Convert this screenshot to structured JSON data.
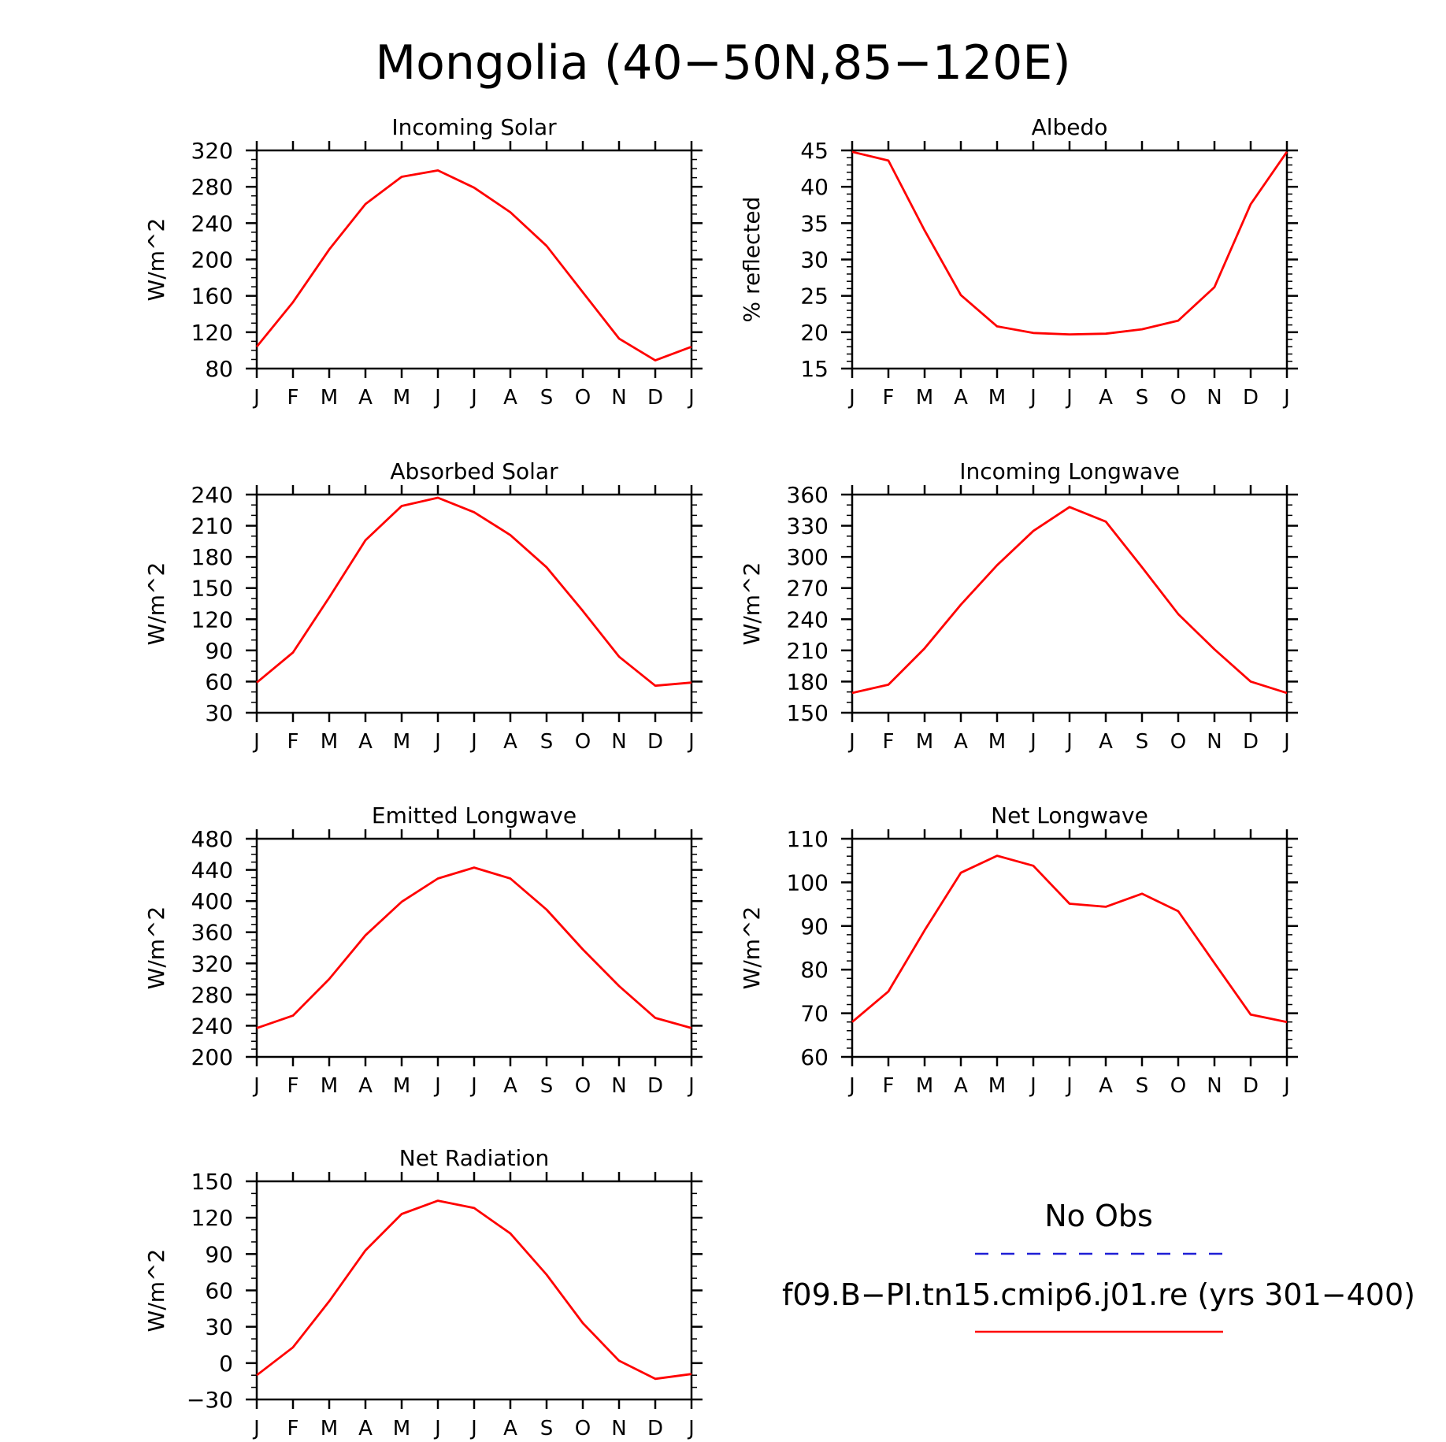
{
  "figure": {
    "title": "Mongolia (40−50N,85−120E)",
    "legend": {
      "entries": [
        {
          "label": "No Obs",
          "color": "#1f1fd6",
          "dash": true
        },
        {
          "label": "f09.B−PI.tn15.cmip6.j01.re (yrs 301−400)",
          "color": "#ff0000",
          "dash": false
        }
      ]
    }
  },
  "chart_data": [
    {
      "type": "line",
      "title": "Incoming Solar",
      "xlabel": "",
      "ylabel": "W/m^2",
      "categories": [
        "J",
        "F",
        "M",
        "A",
        "M",
        "J",
        "J",
        "A",
        "S",
        "O",
        "N",
        "D",
        "J"
      ],
      "ylim": [
        80,
        320
      ],
      "yticks": [
        80,
        120,
        160,
        200,
        240,
        280,
        320
      ],
      "yminor": 10,
      "series": [
        {
          "color": "#ff0000",
          "values": [
            104,
            153,
            211,
            261,
            291,
            298,
            279,
            252,
            215,
            164,
            113,
            89,
            104
          ]
        }
      ]
    },
    {
      "type": "line",
      "title": "Albedo",
      "xlabel": "",
      "ylabel": "% reflected",
      "categories": [
        "J",
        "F",
        "M",
        "A",
        "M",
        "J",
        "J",
        "A",
        "S",
        "O",
        "N",
        "D",
        "J"
      ],
      "ylim": [
        15,
        45
      ],
      "yticks": [
        15,
        20,
        25,
        30,
        35,
        40,
        45
      ],
      "yminor": 1,
      "series": [
        {
          "color": "#ff0000",
          "values": [
            44.8,
            43.6,
            34.0,
            25.1,
            20.8,
            19.9,
            19.7,
            19.8,
            20.4,
            21.6,
            26.2,
            37.6,
            44.8
          ]
        }
      ]
    },
    {
      "type": "line",
      "title": "Absorbed Solar",
      "xlabel": "",
      "ylabel": "W/m^2",
      "categories": [
        "J",
        "F",
        "M",
        "A",
        "M",
        "J",
        "J",
        "A",
        "S",
        "O",
        "N",
        "D",
        "J"
      ],
      "ylim": [
        30,
        240
      ],
      "yticks": [
        30,
        60,
        90,
        120,
        150,
        180,
        210,
        240
      ],
      "yminor": 10,
      "series": [
        {
          "color": "#ff0000",
          "values": [
            59,
            88,
            141,
            196,
            229,
            237,
            223,
            201,
            170,
            128,
            84,
            56,
            59
          ]
        }
      ]
    },
    {
      "type": "line",
      "title": "Incoming Longwave",
      "xlabel": "",
      "ylabel": "W/m^2",
      "categories": [
        "J",
        "F",
        "M",
        "A",
        "M",
        "J",
        "J",
        "A",
        "S",
        "O",
        "N",
        "D",
        "J"
      ],
      "ylim": [
        150,
        360
      ],
      "yticks": [
        150,
        180,
        210,
        240,
        270,
        300,
        330,
        360
      ],
      "yminor": 10,
      "series": [
        {
          "color": "#ff0000",
          "values": [
            169,
            177,
            212,
            254,
            292,
            325,
            348,
            334,
            290,
            245,
            211,
            180,
            169
          ]
        }
      ]
    },
    {
      "type": "line",
      "title": "Emitted Longwave",
      "xlabel": "",
      "ylabel": "W/m^2",
      "categories": [
        "J",
        "F",
        "M",
        "A",
        "M",
        "J",
        "J",
        "A",
        "S",
        "O",
        "N",
        "D",
        "J"
      ],
      "ylim": [
        200,
        480
      ],
      "yticks": [
        200,
        240,
        280,
        320,
        360,
        400,
        440,
        480
      ],
      "yminor": 10,
      "series": [
        {
          "color": "#ff0000",
          "values": [
            237,
            253,
            300,
            356,
            399,
            429,
            443,
            429,
            389,
            338,
            291,
            250,
            237
          ]
        }
      ]
    },
    {
      "type": "line",
      "title": "Net Longwave",
      "xlabel": "",
      "ylabel": "W/m^2",
      "categories": [
        "J",
        "F",
        "M",
        "A",
        "M",
        "J",
        "J",
        "A",
        "S",
        "O",
        "N",
        "D",
        "J"
      ],
      "ylim": [
        60,
        110
      ],
      "yticks": [
        60,
        70,
        80,
        90,
        100,
        110
      ],
      "yminor": 2,
      "series": [
        {
          "color": "#ff0000",
          "values": [
            68,
            75,
            89,
            102.2,
            106.1,
            103.8,
            95.1,
            94.4,
            97.4,
            93.4,
            81.5,
            69.7,
            68
          ]
        }
      ]
    },
    {
      "type": "line",
      "title": "Net Radiation",
      "xlabel": "",
      "ylabel": "W/m^2",
      "categories": [
        "J",
        "F",
        "M",
        "A",
        "M",
        "J",
        "J",
        "A",
        "S",
        "O",
        "N",
        "D",
        "J"
      ],
      "ylim": [
        -30,
        150
      ],
      "yticks": [
        -30,
        0,
        30,
        60,
        90,
        120,
        150
      ],
      "yminor": 10,
      "series": [
        {
          "color": "#ff0000",
          "values": [
            -10,
            13,
            51,
            93,
            123,
            134,
            128,
            107,
            73,
            33,
            2,
            -13,
            -9
          ]
        }
      ]
    }
  ]
}
